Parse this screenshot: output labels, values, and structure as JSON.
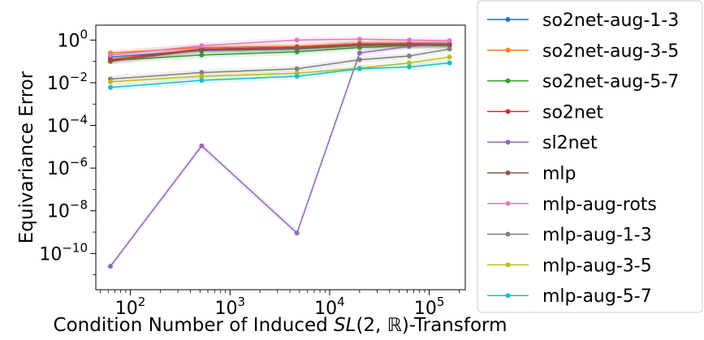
{
  "chart_data": {
    "type": "line",
    "title": "",
    "xlabel_parts": [
      "Condition Number of Induced ",
      "SL",
      "(2, ℝ)",
      "-Transform"
    ],
    "ylabel": "Equivariance Error",
    "xscale": "log",
    "yscale": "log",
    "xlim": [
      45,
      230000
    ],
    "ylim": [
      2e-12,
      5
    ],
    "x_ticks": [
      {
        "value": 100,
        "base": "10",
        "exp": "2"
      },
      {
        "value": 1000,
        "base": "10",
        "exp": "3"
      },
      {
        "value": 10000,
        "base": "10",
        "exp": "4"
      },
      {
        "value": 100000,
        "base": "10",
        "exp": "5"
      }
    ],
    "y_ticks": [
      {
        "value": 1,
        "base": "10",
        "exp": "0"
      },
      {
        "value": 0.01,
        "base": "10",
        "exp": "−2"
      },
      {
        "value": 0.0001,
        "base": "10",
        "exp": "−4"
      },
      {
        "value": 1e-06,
        "base": "10",
        "exp": "−6"
      },
      {
        "value": 1e-08,
        "base": "10",
        "exp": "−8"
      },
      {
        "value": 1e-10,
        "base": "10",
        "exp": "−10"
      }
    ],
    "x": [
      63,
      520,
      4700,
      20000,
      63000,
      160000
    ],
    "legend_position": "outside-right",
    "series": [
      {
        "name": "so2net-aug-1-3",
        "color": "#1f77b4",
        "values": [
          0.16,
          0.32,
          0.38,
          0.55,
          0.6,
          0.6
        ]
      },
      {
        "name": "so2net-aug-3-5",
        "color": "#ff7f0e",
        "values": [
          0.25,
          0.45,
          0.5,
          0.7,
          0.72,
          0.7
        ]
      },
      {
        "name": "so2net-aug-5-7",
        "color": "#2ca02c",
        "values": [
          0.11,
          0.2,
          0.28,
          0.45,
          0.55,
          0.55
        ]
      },
      {
        "name": "so2net",
        "color": "#d62728",
        "values": [
          0.12,
          0.38,
          0.45,
          0.62,
          0.65,
          0.65
        ]
      },
      {
        "name": "sl2net",
        "color": "#9467bd",
        "values": [
          2.5e-11,
          1.1e-05,
          9e-10,
          0.25,
          0.5,
          0.65
        ]
      },
      {
        "name": "mlp",
        "color": "#8c564b",
        "values": [
          0.1,
          0.35,
          0.42,
          0.6,
          0.62,
          0.62
        ]
      },
      {
        "name": "mlp-aug-rots",
        "color": "#e377c2",
        "values": [
          0.2,
          0.55,
          1.0,
          1.1,
          1.0,
          0.95
        ]
      },
      {
        "name": "mlp-aug-1-3",
        "color": "#7f7f7f",
        "values": [
          0.015,
          0.03,
          0.045,
          0.12,
          0.18,
          0.38
        ]
      },
      {
        "name": "mlp-aug-3-5",
        "color": "#bcbd22",
        "values": [
          0.011,
          0.02,
          0.028,
          0.048,
          0.085,
          0.16
        ]
      },
      {
        "name": "mlp-aug-5-7",
        "color": "#17becf",
        "values": [
          0.006,
          0.013,
          0.02,
          0.045,
          0.055,
          0.085
        ]
      }
    ]
  }
}
